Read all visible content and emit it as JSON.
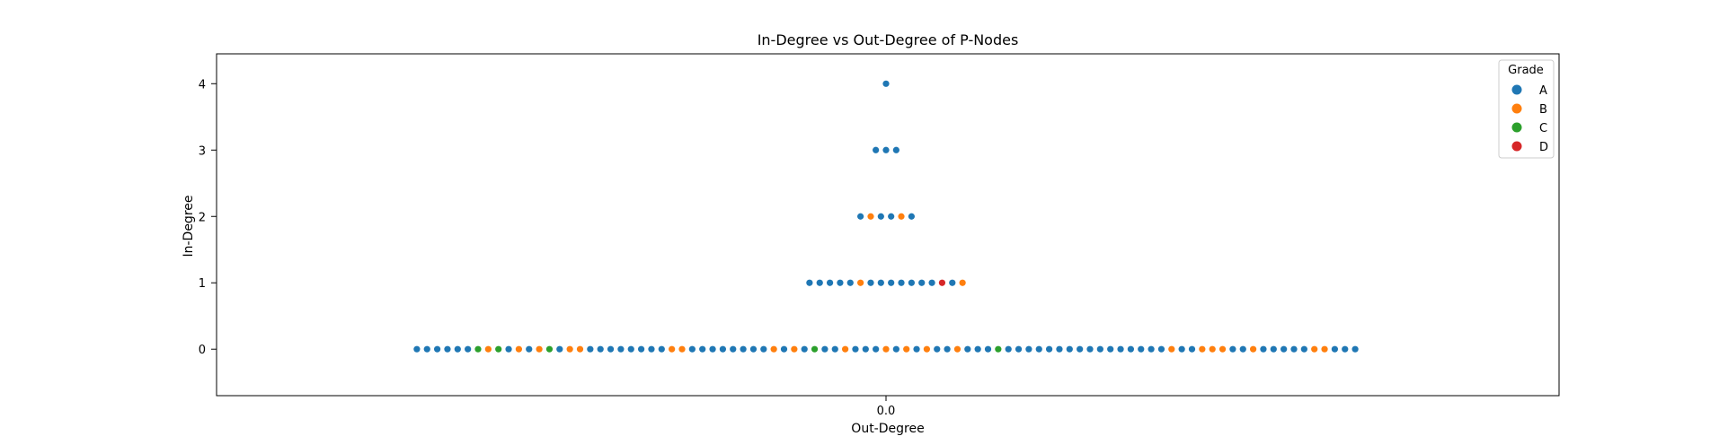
{
  "chart_data": {
    "type": "scatter",
    "subtype": "swarm",
    "title": "In-Degree vs Out-Degree of P-Nodes",
    "xlabel": "Out-Degree",
    "ylabel": "In-Degree",
    "x_ticks": [
      "0.0"
    ],
    "y_ticks": [
      0,
      1,
      2,
      3,
      4
    ],
    "ylim": [
      -0.7,
      4.45
    ],
    "legend": {
      "title": "Grade",
      "placement": "top-right"
    },
    "series": [
      {
        "name": "A",
        "color": "#1f77b4"
      },
      {
        "name": "B",
        "color": "#ff7f0e"
      },
      {
        "name": "C",
        "color": "#2ca02c"
      },
      {
        "name": "D",
        "color": "#d62728"
      }
    ],
    "groups": [
      {
        "out_degree": 0.0,
        "in_degree": 4,
        "grades": [
          "A"
        ]
      },
      {
        "out_degree": 0.0,
        "in_degree": 3,
        "grades": [
          "A",
          "A",
          "A"
        ]
      },
      {
        "out_degree": 0.0,
        "in_degree": 2,
        "grades": [
          "A",
          "B",
          "A",
          "A",
          "B",
          "A"
        ]
      },
      {
        "out_degree": 0.0,
        "in_degree": 1,
        "grades": [
          "A",
          "A",
          "A",
          "A",
          "A",
          "B",
          "A",
          "A",
          "A",
          "A",
          "A",
          "A",
          "A",
          "D",
          "A",
          "B"
        ]
      },
      {
        "out_degree": 0.0,
        "in_degree": 0,
        "grades": [
          "A",
          "A",
          "A",
          "A",
          "A",
          "A",
          "C",
          "B",
          "C",
          "A",
          "B",
          "A",
          "B",
          "C",
          "A",
          "B",
          "B",
          "A",
          "A",
          "A",
          "A",
          "A",
          "A",
          "A",
          "A",
          "B",
          "B",
          "A",
          "A",
          "A",
          "A",
          "A",
          "A",
          "A",
          "A",
          "B",
          "A",
          "B",
          "A",
          "C",
          "A",
          "A",
          "B",
          "A",
          "A",
          "A",
          "B",
          "A",
          "B",
          "A",
          "B",
          "A",
          "A",
          "B",
          "A",
          "A",
          "A",
          "C",
          "A",
          "A",
          "A",
          "A",
          "A",
          "A",
          "A",
          "A",
          "A",
          "A",
          "A",
          "A",
          "A",
          "A",
          "A",
          "A",
          "B",
          "A",
          "A",
          "B",
          "B",
          "B",
          "A",
          "A",
          "B",
          "A",
          "A",
          "A",
          "A",
          "A",
          "B",
          "B",
          "A",
          "A",
          "A"
        ]
      }
    ]
  }
}
